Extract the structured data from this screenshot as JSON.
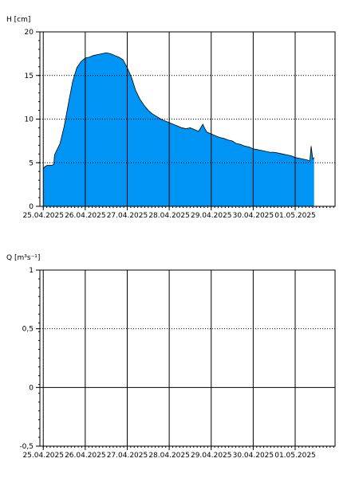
{
  "chart_data": [
    {
      "type": "area",
      "ylabel": "H [cm]",
      "ylim": [
        0,
        20
      ],
      "yticks": [
        {
          "value": 0,
          "label": "0"
        },
        {
          "value": 5,
          "label": "5"
        },
        {
          "value": 10,
          "label": "10"
        },
        {
          "value": 15,
          "label": "15"
        },
        {
          "value": 20,
          "label": "20"
        }
      ],
      "xlim": [
        -0.08,
        6.95
      ],
      "xticks": [
        {
          "value": 0,
          "label": "25.04.2025"
        },
        {
          "value": 1,
          "label": "26.04.2025"
        },
        {
          "value": 2,
          "label": "27.04.2025"
        },
        {
          "value": 3,
          "label": "28.04.2025"
        },
        {
          "value": 4,
          "label": "29.04.2025"
        },
        {
          "value": 5,
          "label": "30.04.2025"
        },
        {
          "value": 6,
          "label": "01.05.2025"
        }
      ],
      "grid": {
        "x_solid": true,
        "y_dotted": true
      },
      "fill_color": "#0095f5",
      "line_color": "#000000",
      "series": [
        {
          "x": [
            0.0,
            0.05,
            0.1,
            0.2,
            0.25,
            0.27,
            0.3,
            0.4,
            0.5,
            0.6,
            0.7,
            0.8,
            0.9,
            1.0,
            1.1,
            1.2,
            1.3,
            1.4,
            1.5,
            1.6,
            1.7,
            1.8,
            1.9,
            2.0,
            2.1,
            2.2,
            2.3,
            2.4,
            2.5,
            2.6,
            2.7,
            2.8,
            2.9,
            3.0,
            3.1,
            3.2,
            3.3,
            3.4,
            3.5,
            3.6,
            3.7,
            3.8,
            3.85,
            3.9,
            4.0,
            4.1,
            4.2,
            4.3,
            4.4,
            4.5,
            4.6,
            4.7,
            4.8,
            4.9,
            5.0,
            5.1,
            5.2,
            5.3,
            5.4,
            5.5,
            5.6,
            5.7,
            5.8,
            5.9,
            6.0,
            6.1,
            6.2,
            6.3,
            6.35,
            6.38,
            6.42,
            6.45
          ],
          "y": [
            4.3,
            4.6,
            4.7,
            4.7,
            4.8,
            5.9,
            6.2,
            7.2,
            9.2,
            11.8,
            14.3,
            15.9,
            16.6,
            17.0,
            17.1,
            17.3,
            17.4,
            17.5,
            17.6,
            17.5,
            17.3,
            17.1,
            16.8,
            15.9,
            14.8,
            13.3,
            12.3,
            11.6,
            11.0,
            10.6,
            10.3,
            10.0,
            9.8,
            9.6,
            9.4,
            9.2,
            9.0,
            8.9,
            9.0,
            8.8,
            8.6,
            9.4,
            8.9,
            8.5,
            8.3,
            8.1,
            7.9,
            7.8,
            7.6,
            7.5,
            7.2,
            7.1,
            6.9,
            6.8,
            6.6,
            6.5,
            6.4,
            6.3,
            6.2,
            6.2,
            6.1,
            6.0,
            5.9,
            5.8,
            5.6,
            5.5,
            5.4,
            5.3,
            5.2,
            6.9,
            5.4,
            5.6
          ]
        }
      ]
    },
    {
      "type": "line",
      "ylabel": "Q [m³s⁻¹]",
      "ylim": [
        -0.5,
        1
      ],
      "yticks": [
        {
          "value": -0.5,
          "label": "-0,5"
        },
        {
          "value": 0,
          "label": "0"
        },
        {
          "value": 0.5,
          "label": "0,5"
        },
        {
          "value": 1,
          "label": "1"
        }
      ],
      "xlim": [
        -0.08,
        6.95
      ],
      "xticks": [
        {
          "value": 0,
          "label": "25.04.2025"
        },
        {
          "value": 1,
          "label": "26.04.2025"
        },
        {
          "value": 2,
          "label": "27.04.2025"
        },
        {
          "value": 3,
          "label": "28.04.2025"
        },
        {
          "value": 4,
          "label": "29.04.2025"
        },
        {
          "value": 5,
          "label": "30.04.2025"
        },
        {
          "value": 6,
          "label": "01.05.2025"
        }
      ],
      "grid": {
        "x_solid": true,
        "y_dotted": true,
        "zero_line": true
      },
      "series": []
    }
  ]
}
